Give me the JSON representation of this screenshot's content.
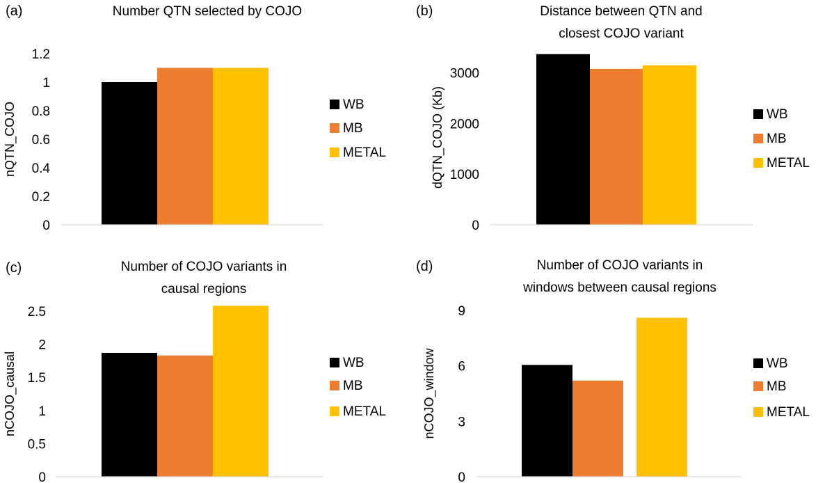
{
  "colors": {
    "WB": "#000000",
    "MB": "#ed7d31",
    "METAL": "#ffc000",
    "axis": "#d9d9d9"
  },
  "chart_data": [
    {
      "panel": "a",
      "panel_label": "(a)",
      "type": "bar",
      "title": [
        "Number QTN selected by COJO"
      ],
      "ylabel": "nQTN_COJO",
      "ylim": [
        0,
        1.2
      ],
      "yticks": [
        "0",
        "0.2",
        "0.4",
        "0.6",
        "0.8",
        "1",
        "1.2"
      ],
      "ytick_values": [
        0,
        0.2,
        0.4,
        0.6,
        0.8,
        1,
        1.2
      ],
      "series": [
        {
          "name": "WB",
          "values": [
            1.0
          ]
        },
        {
          "name": "MB",
          "values": [
            1.1
          ]
        },
        {
          "name": "METAL",
          "values": [
            1.1
          ]
        }
      ],
      "legend": "right",
      "grid": false
    },
    {
      "panel": "b",
      "panel_label": "(b)",
      "type": "bar",
      "title": [
        "Distance  between  QTN and",
        "closest COJO variant"
      ],
      "ylabel": "dQTN_COJO (Kb)",
      "ylim": [
        0,
        3450
      ],
      "yticks": [
        "0",
        "1000",
        "2000",
        "3000"
      ],
      "ytick_values": [
        0,
        1000,
        2000,
        3000
      ],
      "series": [
        {
          "name": "WB",
          "values": [
            3370
          ]
        },
        {
          "name": "MB",
          "values": [
            3080
          ]
        },
        {
          "name": "METAL",
          "values": [
            3150
          ]
        }
      ],
      "legend": "right",
      "grid": false
    },
    {
      "panel": "c",
      "panel_label": "(c)",
      "type": "bar",
      "title": [
        "Number  of COJO variants  in",
        "causal regions"
      ],
      "ylabel": "nCOJO_causal",
      "ylim": [
        0,
        2.5
      ],
      "yticks": [
        "0",
        "0.5",
        "1",
        "1.5",
        "2",
        "2.5"
      ],
      "ytick_values": [
        0,
        0.5,
        1,
        1.5,
        2,
        2.5
      ],
      "series": [
        {
          "name": "WB",
          "values": [
            1.87
          ]
        },
        {
          "name": "MB",
          "values": [
            1.83
          ]
        },
        {
          "name": "METAL",
          "values": [
            2.58
          ]
        }
      ],
      "legend": "right",
      "grid": false
    },
    {
      "panel": "d",
      "panel_label": "(d)",
      "type": "bar",
      "title": [
        "Number of COJO variants  in",
        "windows between causal regions"
      ],
      "ylabel": "nCOJO_window",
      "ylim": [
        0,
        9
      ],
      "yticks": [
        "0",
        "3",
        "6",
        "9"
      ],
      "ytick_values": [
        0,
        3,
        6,
        9
      ],
      "series": [
        {
          "name": "WB",
          "values": [
            6.05
          ]
        },
        {
          "name": "MB",
          "values": [
            5.2
          ]
        },
        {
          "name": "METAL",
          "values": [
            8.6
          ]
        }
      ],
      "legend": "right",
      "grid": false
    }
  ]
}
